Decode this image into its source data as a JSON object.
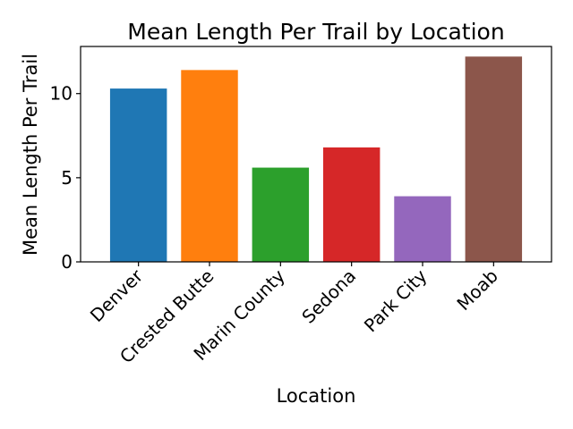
{
  "chart_data": {
    "type": "bar",
    "title": "Mean Length Per Trail by Location",
    "xlabel": "Location",
    "ylabel": "Mean Length Per Trail",
    "categories": [
      "Denver",
      "Crested Butte",
      "Marin County",
      "Sedona",
      "Park City",
      "Moab"
    ],
    "values": [
      10.3,
      11.4,
      5.6,
      6.8,
      3.9,
      12.2
    ],
    "colors": [
      "#1f77b4",
      "#ff7f0e",
      "#2ca02c",
      "#d62728",
      "#9467bd",
      "#8c564b"
    ],
    "ylim": [
      0,
      12.8
    ],
    "yticks": [
      0,
      5,
      10
    ],
    "ytick_labels": [
      "0",
      "5",
      "10"
    ],
    "grid": false,
    "legend": "none"
  }
}
